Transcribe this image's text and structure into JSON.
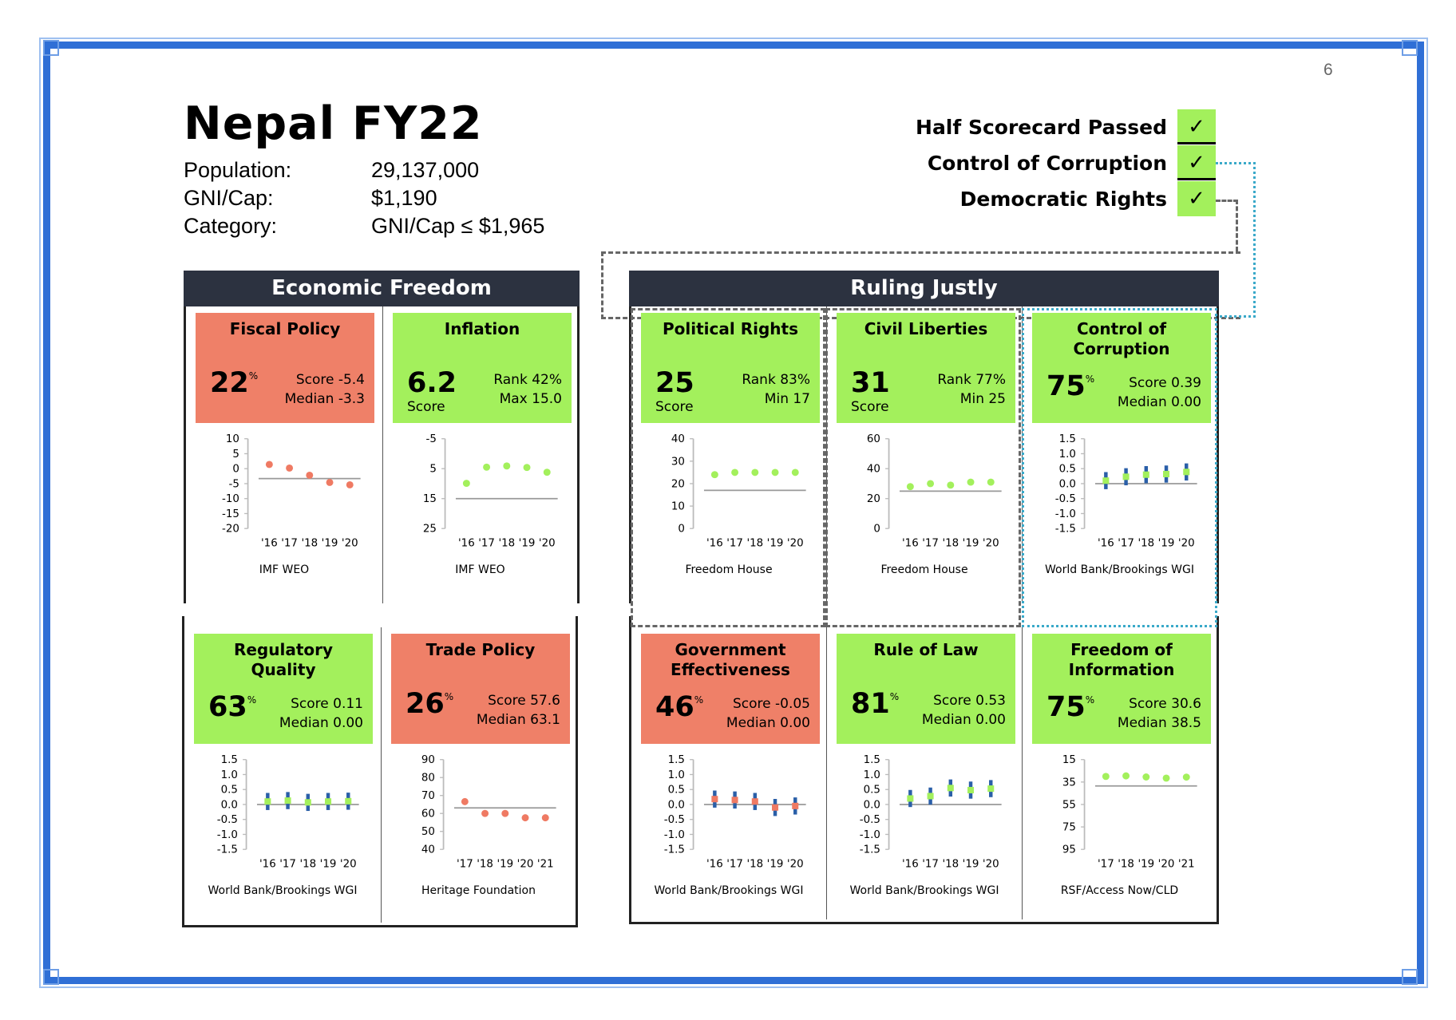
{
  "page_number": "6",
  "title": "Nepal FY22",
  "info": [
    {
      "label": "Population:",
      "value": "29,137,000"
    },
    {
      "label": "GNI/Cap:",
      "value": "$1,190"
    },
    {
      "label": "Category:",
      "value": "GNI/Cap ≤ $1,965"
    }
  ],
  "checks": [
    {
      "label": "Half Scorecard Passed",
      "mark": "✓"
    },
    {
      "label": "Control of Corruption",
      "mark": "✓"
    },
    {
      "label": "Democratic Rights",
      "mark": "✓"
    }
  ],
  "sections": {
    "economic": "Economic Freedom",
    "ruling": "Ruling Justly"
  },
  "colors": {
    "pass": "#a3f05c",
    "fail": "#ef8068",
    "header": "#2c3240",
    "frame": "#2f6fd6",
    "dot_red": "#ef7a63",
    "dot_green": "#a3f05c",
    "bar_blue": "#2a5fa8"
  },
  "chart_data": [
    {
      "id": "fiscal",
      "type": "scatter",
      "title": "Fiscal Policy",
      "status": "fail",
      "big": "22",
      "big_sup": "%",
      "big_sub": "",
      "stat1": "Score -5.4",
      "stat2": "Median -3.3",
      "source": "IMF WEO",
      "x": [
        "'16",
        "'17",
        "'18",
        "'19",
        "'20"
      ],
      "values": [
        1.4,
        0.2,
        -2.2,
        -4.6,
        -5.4
      ],
      "median": -3.3,
      "ylim": [
        -20,
        10
      ],
      "yticks": [
        "10",
        "5",
        "0",
        "-5",
        "-10",
        "-15",
        "-20"
      ],
      "inverted": false,
      "errorbars": false,
      "dot": "red"
    },
    {
      "id": "inflation",
      "type": "scatter",
      "title": "Inflation",
      "status": "pass",
      "big": "6.2",
      "big_sup": "",
      "big_sub": "Score",
      "stat1": "Rank 42%",
      "stat2": "Max 15.0",
      "source": "IMF WEO",
      "x": [
        "'16",
        "'17",
        "'18",
        "'19",
        "'20"
      ],
      "values": [
        9.9,
        4.5,
        4.1,
        4.6,
        6.2
      ],
      "median": 15.0,
      "ylim": [
        -5,
        25
      ],
      "yticks": [
        "-5",
        "5",
        "15",
        "25"
      ],
      "inverted": true,
      "errorbars": false,
      "dot": "green"
    },
    {
      "id": "regulatory",
      "type": "scatter",
      "title": "Regulatory Quality",
      "status": "pass",
      "big": "63",
      "big_sup": "%",
      "big_sub": "",
      "stat1": "Score 0.11",
      "stat2": "Median 0.00",
      "source": "World Bank/Brookings WGI",
      "x": [
        "'16",
        "'17",
        "'18",
        "'19",
        "'20"
      ],
      "values": [
        0.1,
        0.13,
        0.07,
        0.1,
        0.11
      ],
      "median": 0.0,
      "ylim": [
        -1.5,
        1.5
      ],
      "yticks": [
        "1.5",
        "1.0",
        "0.5",
        "0.0",
        "-0.5",
        "-1.0",
        "-1.5"
      ],
      "inverted": false,
      "errorbars": true,
      "dot": "green"
    },
    {
      "id": "trade",
      "type": "scatter",
      "title": "Trade Policy",
      "status": "fail",
      "big": "26",
      "big_sup": "%",
      "big_sub": "",
      "stat1": "Score 57.6",
      "stat2": "Median 63.1",
      "source": "Heritage Foundation",
      "x": [
        "'17",
        "'18",
        "'19",
        "'20",
        "'21"
      ],
      "values": [
        66.6,
        60,
        60,
        57.6,
        57.6
      ],
      "median": 63.1,
      "ylim": [
        40,
        90
      ],
      "yticks": [
        "90",
        "80",
        "70",
        "60",
        "50",
        "40"
      ],
      "inverted": false,
      "errorbars": false,
      "dot": "red"
    },
    {
      "id": "political",
      "type": "scatter",
      "title": "Political Rights",
      "status": "pass",
      "big": "25",
      "big_sup": "",
      "big_sub": "Score",
      "stat1": "Rank 83%",
      "stat2": "Min 17",
      "source": "Freedom House",
      "x": [
        "'16",
        "'17",
        "'18",
        "'19",
        "'20"
      ],
      "values": [
        24,
        25,
        25,
        25,
        25
      ],
      "median": 17,
      "ylim": [
        0,
        40
      ],
      "yticks": [
        "40",
        "30",
        "20",
        "10",
        "0"
      ],
      "inverted": false,
      "errorbars": false,
      "dot": "green"
    },
    {
      "id": "civil",
      "type": "scatter",
      "title": "Civil Liberties",
      "status": "pass",
      "big": "31",
      "big_sup": "",
      "big_sub": "Score",
      "stat1": "Rank 77%",
      "stat2": "Min 25",
      "source": "Freedom House",
      "x": [
        "'16",
        "'17",
        "'18",
        "'19",
        "'20"
      ],
      "values": [
        28,
        30,
        29,
        31,
        31
      ],
      "median": 25,
      "ylim": [
        0,
        60
      ],
      "yticks": [
        "60",
        "40",
        "20",
        "0"
      ],
      "inverted": false,
      "errorbars": false,
      "dot": "green"
    },
    {
      "id": "corruption",
      "type": "scatter",
      "title": "Control of Corruption",
      "status": "pass",
      "big": "75",
      "big_sup": "%",
      "big_sub": "",
      "stat1": "Score 0.39",
      "stat2": "Median 0.00",
      "source": "World Bank/Brookings WGI",
      "x": [
        "'16",
        "'17",
        "'18",
        "'19",
        "'20"
      ],
      "values": [
        0.1,
        0.23,
        0.3,
        0.32,
        0.39
      ],
      "median": 0.0,
      "ylim": [
        -1.5,
        1.5
      ],
      "yticks": [
        "1.5",
        "1.0",
        "0.5",
        "0.0",
        "-0.5",
        "-1.0",
        "-1.5"
      ],
      "inverted": false,
      "errorbars": true,
      "dot": "green"
    },
    {
      "id": "government",
      "type": "scatter",
      "title": "Government Effectiveness",
      "status": "fail",
      "big": "46",
      "big_sup": "%",
      "big_sub": "",
      "stat1": "Score -0.05",
      "stat2": "Median 0.00",
      "source": "World Bank/Brookings WGI",
      "x": [
        "'16",
        "'17",
        "'18",
        "'19",
        "'20"
      ],
      "values": [
        0.18,
        0.15,
        0.1,
        -0.1,
        -0.05
      ],
      "median": 0.0,
      "ylim": [
        -1.5,
        1.5
      ],
      "yticks": [
        "1.5",
        "1.0",
        "0.5",
        "0.0",
        "-0.5",
        "-1.0",
        "-1.5"
      ],
      "inverted": false,
      "errorbars": true,
      "dot": "red"
    },
    {
      "id": "law",
      "type": "scatter",
      "title": "Rule of Law",
      "status": "pass",
      "big": "81",
      "big_sup": "%",
      "big_sub": "",
      "stat1": "Score 0.53",
      "stat2": "Median 0.00",
      "source": "World Bank/Brookings WGI",
      "x": [
        "'16",
        "'17",
        "'18",
        "'19",
        "'20"
      ],
      "values": [
        0.2,
        0.28,
        0.55,
        0.48,
        0.53
      ],
      "median": 0.0,
      "ylim": [
        -1.5,
        1.5
      ],
      "yticks": [
        "1.5",
        "1.0",
        "0.5",
        "0.0",
        "-0.5",
        "-1.0",
        "-1.5"
      ],
      "inverted": false,
      "errorbars": true,
      "dot": "green"
    },
    {
      "id": "information",
      "type": "scatter",
      "title": "Freedom of Information",
      "status": "pass",
      "big": "75",
      "big_sup": "%",
      "big_sub": "",
      "stat1": "Score 30.6",
      "stat2": "Median 38.5",
      "source": "RSF/Access Now/CLD",
      "x": [
        "'17",
        "'18",
        "'19",
        "'20",
        "'21"
      ],
      "values": [
        30,
        29.5,
        30.5,
        31.5,
        30.6
      ],
      "median": 38.5,
      "ylim": [
        15,
        95
      ],
      "yticks": [
        "15",
        "35",
        "55",
        "75",
        "95"
      ],
      "inverted": true,
      "errorbars": false,
      "dot": "green"
    }
  ]
}
